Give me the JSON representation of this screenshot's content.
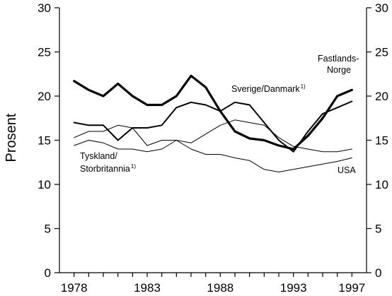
{
  "chart_data": {
    "type": "line",
    "title": "",
    "xlabel": "",
    "ylabel": "Prosent",
    "xlim": [
      1977,
      1998
    ],
    "ylim": [
      0,
      30
    ],
    "x_ticks": [
      1978,
      1983,
      1988,
      1993,
      1997
    ],
    "x_tick_labels": [
      "1978",
      "1983",
      "1988",
      "1993",
      "1997"
    ],
    "y_ticks": [
      0,
      5,
      10,
      15,
      20,
      25,
      30
    ],
    "y_tick_labels": [
      "0",
      "5",
      "10",
      "15",
      "20",
      "25",
      "30"
    ],
    "y_axis_right_mirror": true,
    "grid": false,
    "x": [
      1978,
      1979,
      1980,
      1981,
      1982,
      1983,
      1984,
      1985,
      1986,
      1987,
      1988,
      1989,
      1990,
      1991,
      1992,
      1993,
      1994,
      1995,
      1996,
      1997
    ],
    "series": [
      {
        "name": "Fastlands-Norge",
        "label_lines": [
          "Fastlands-",
          "Norge"
        ],
        "weight": "heavy",
        "values": [
          21.7,
          20.7,
          20.0,
          21.4,
          20.0,
          19.0,
          19.0,
          20.0,
          22.3,
          21.0,
          18.3,
          16.0,
          15.2,
          15.0,
          14.4,
          14.0,
          15.5,
          17.5,
          20.0,
          20.7
        ]
      },
      {
        "name": "Sverige/Danmark",
        "footnote": "1)",
        "weight": "medium",
        "values": [
          17.0,
          16.7,
          16.7,
          15.0,
          16.4,
          16.4,
          16.7,
          18.7,
          19.3,
          19.0,
          18.3,
          19.3,
          19.0,
          17.0,
          15.0,
          13.7,
          16.0,
          18.0,
          18.7,
          19.4
        ]
      },
      {
        "name": "Tyskland/Storbritannia",
        "label_lines": [
          "Tyskland/",
          "Storbritannia"
        ],
        "footnote": "1)",
        "weight": "thin",
        "values": [
          15.3,
          16.0,
          16.0,
          16.7,
          16.4,
          14.4,
          15.0,
          15.0,
          14.7,
          15.7,
          16.7,
          17.3,
          17.0,
          16.7,
          15.3,
          14.3,
          14.0,
          13.7,
          13.7,
          14.0
        ]
      },
      {
        "name": "USA",
        "weight": "thin",
        "values": [
          14.4,
          15.0,
          14.7,
          14.0,
          14.0,
          13.7,
          14.0,
          15.0,
          14.0,
          13.4,
          13.4,
          13.0,
          12.7,
          11.7,
          11.4,
          11.7,
          12.0,
          12.3,
          12.6,
          13.0
        ]
      }
    ]
  }
}
